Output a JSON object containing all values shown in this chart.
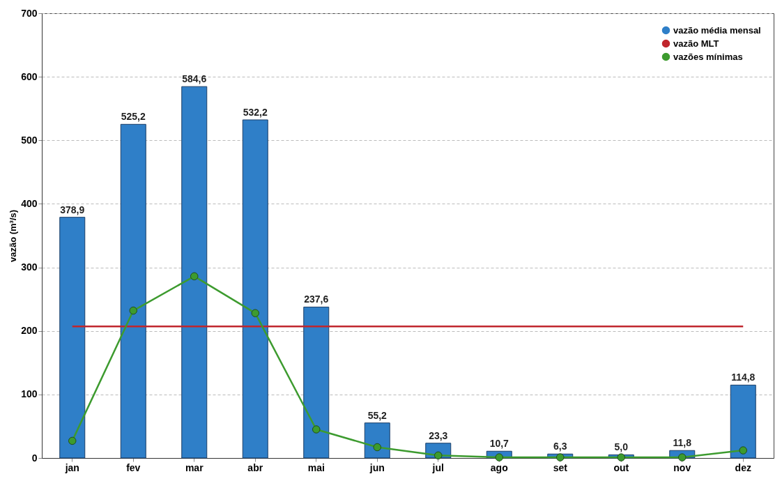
{
  "chart_data": {
    "type": "bar",
    "ylabel": "vazão (m³/s)",
    "categories": [
      "jan",
      "fev",
      "mar",
      "abr",
      "mai",
      "jun",
      "jul",
      "ago",
      "set",
      "out",
      "nov",
      "dez"
    ],
    "series": [
      {
        "name": "vazão média mensal",
        "color": "#2f7fc8",
        "values": [
          378.9,
          525.2,
          584.6,
          532.2,
          237.6,
          55.2,
          23.3,
          10.7,
          6.3,
          5.0,
          11.8,
          114.8
        ],
        "value_labels": [
          "378,9",
          "525,2",
          "584,6",
          "532,2",
          "237,6",
          "55,2",
          "23,3",
          "10,7",
          "6,3",
          "5,0",
          "11,8",
          "114,8"
        ]
      },
      {
        "name": "vazão MLT",
        "type": "line",
        "color": "#c0262d",
        "marker": "none",
        "values": [
          207,
          207,
          207,
          207,
          207,
          207,
          207,
          207,
          207,
          207,
          207,
          207
        ]
      },
      {
        "name": "vazões mínimas",
        "type": "line",
        "color": "#3d9b2f",
        "marker": "circle",
        "values": [
          27,
          232,
          286,
          228,
          45,
          17,
          4,
          1,
          1,
          1,
          1,
          12
        ]
      }
    ],
    "ylim": [
      0,
      700
    ],
    "yticks": [
      0,
      100,
      200,
      300,
      400,
      500,
      600,
      700
    ],
    "grid": "y",
    "legend": "top right"
  }
}
